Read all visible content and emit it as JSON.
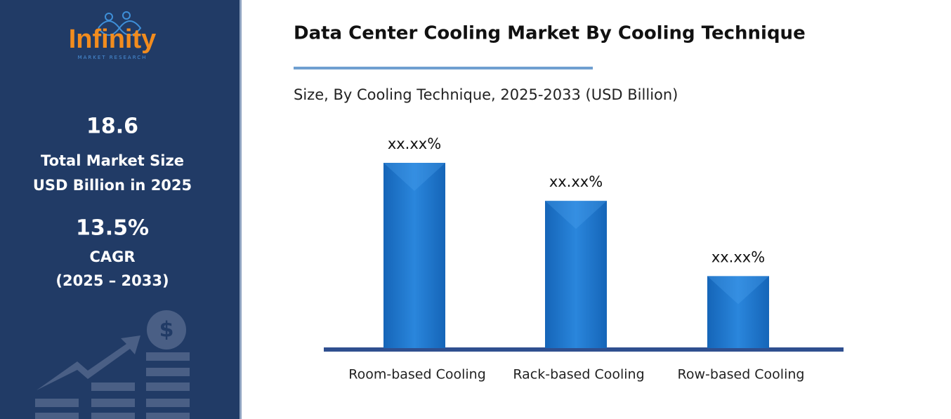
{
  "sidebar": {
    "logo": "Infinity",
    "tagline": "MARKET RESEARCH",
    "stats": [
      {
        "value": "18.6",
        "lines": [
          "Total Market Size",
          "USD Billion in 2025"
        ]
      },
      {
        "value": "13.5%",
        "lines": [
          "CAGR",
          "(2025 – 2033)"
        ]
      }
    ]
  },
  "chart_data": {
    "type": "bar",
    "title": "Data Center Cooling Market By Cooling Technique",
    "subtitle": "Size, By Cooling Technique, 2025-2033 (USD Billion)",
    "categories": [
      "Room-based Cooling",
      "Rack-based Cooling",
      "Row-based Cooling"
    ],
    "values": [
      45.8,
      36.4,
      17.8
    ],
    "value_labels": [
      "xx.xx%",
      "xx.xx%",
      "xx.xx%"
    ],
    "color": "#1f78d1"
  }
}
